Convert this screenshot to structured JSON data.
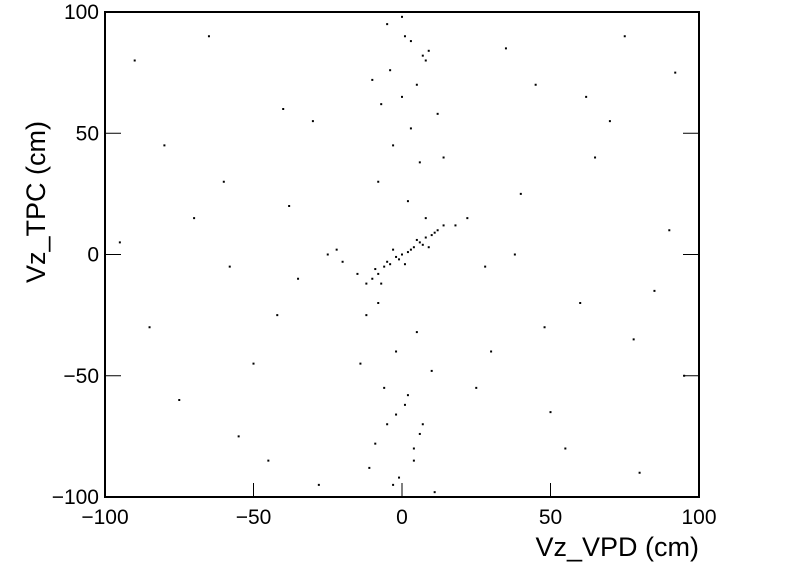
{
  "chart_data": {
    "type": "scatter",
    "color": "#000000",
    "grid": false,
    "xlabel": "Vz_VPD (cm)",
    "ylabel": "Vz_TPC (cm)",
    "xlim": [
      -100,
      100
    ],
    "ylim": [
      -100,
      100
    ],
    "xticks": [
      {
        "value": -100,
        "label": "−100"
      },
      {
        "value": -50,
        "label": "−50"
      },
      0,
      50,
      100
    ],
    "yticks": [
      {
        "value": -100,
        "label": "−100"
      },
      {
        "value": -50,
        "label": "−50"
      },
      0,
      50,
      100
    ],
    "x": [
      -5,
      3,
      8,
      -10,
      0,
      12,
      -3,
      6,
      -8,
      2,
      -12,
      5,
      -2,
      10,
      -6,
      1,
      7,
      -9,
      4,
      -1,
      0,
      -4,
      9,
      -7,
      3,
      11,
      -11,
      6,
      -2,
      2,
      14,
      -14,
      5,
      -5,
      8,
      -8,
      1,
      -3,
      4,
      7,
      -10,
      -8,
      -6,
      -4,
      -2,
      0,
      2,
      4,
      6,
      8,
      10,
      12,
      14,
      -12,
      -9,
      -5,
      -1,
      3,
      7,
      11,
      -15,
      -20,
      -25,
      18,
      22,
      -7,
      5,
      1,
      -3,
      9,
      -90,
      -75,
      -60,
      -45,
      -30,
      30,
      45,
      60,
      75,
      90,
      -85,
      -70,
      -55,
      -40,
      -35,
      35,
      50,
      65,
      80,
      95,
      -95,
      -65,
      -50,
      -38,
      -28,
      28,
      40,
      55,
      70,
      85,
      -80,
      -58,
      -42,
      -22,
      25,
      38,
      48,
      62,
      78,
      92
    ],
    "values": [
      95,
      88,
      80,
      72,
      65,
      58,
      45,
      38,
      30,
      22,
      -25,
      -32,
      -40,
      -48,
      -55,
      -62,
      -70,
      -78,
      -85,
      -92,
      98,
      76,
      84,
      62,
      52,
      -98,
      -88,
      -74,
      -66,
      -58,
      40,
      -45,
      70,
      -70,
      15,
      -20,
      90,
      -95,
      -80,
      82,
      -10,
      -8,
      -5,
      -4,
      -1,
      0,
      1,
      3,
      5,
      7,
      8,
      10,
      12,
      -12,
      -6,
      -3,
      -2,
      2,
      4,
      9,
      -8,
      -3,
      0,
      12,
      15,
      -12,
      6,
      -4,
      2,
      3,
      80,
      -60,
      30,
      -85,
      55,
      -40,
      70,
      -20,
      90,
      10,
      -30,
      15,
      -75,
      60,
      -10,
      85,
      -65,
      40,
      -90,
      -50,
      5,
      90,
      -45,
      20,
      -95,
      -5,
      25,
      -80,
      55,
      -15,
      45,
      -5,
      -25,
      2,
      -55,
      0,
      -30,
      65,
      -35,
      75
    ]
  }
}
